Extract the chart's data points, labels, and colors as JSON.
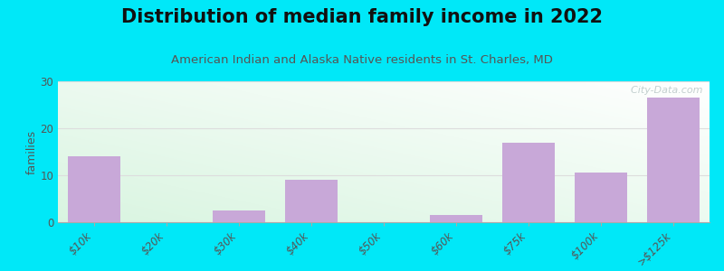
{
  "title": "Distribution of median family income in 2022",
  "subtitle": "American Indian and Alaska Native residents in St. Charles, MD",
  "categories": [
    "$10k",
    "$20k",
    "$30k",
    "$40k",
    "$50k",
    "$60k",
    "$75k",
    "$100k",
    ">$125k"
  ],
  "values": [
    14,
    0,
    2.5,
    9,
    0,
    1.5,
    17,
    10.5,
    26.5
  ],
  "bar_color": "#c8a8d8",
  "background_outer": "#00e8f8",
  "title_color": "#111111",
  "subtitle_color": "#555555",
  "ylabel": "families",
  "ylim": [
    0,
    30
  ],
  "yticks": [
    0,
    10,
    20,
    30
  ],
  "grid_color": "#dddddd",
  "watermark": "  City-Data.com",
  "title_fontsize": 15,
  "subtitle_fontsize": 9.5
}
